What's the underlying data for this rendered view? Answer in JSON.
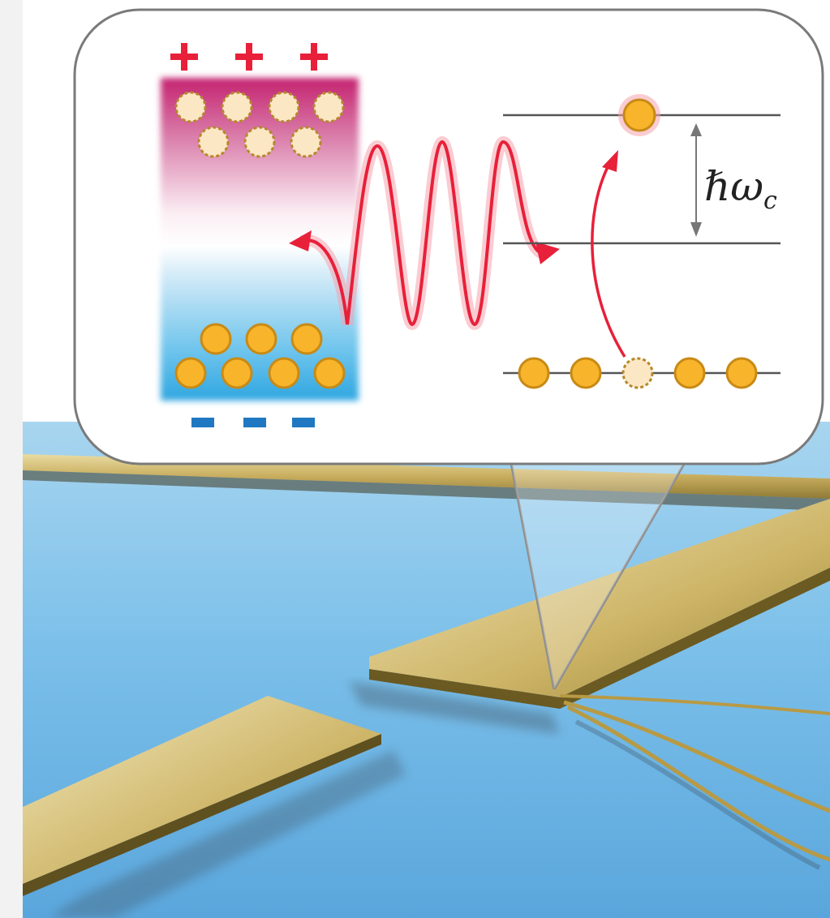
{
  "figure": {
    "energy_label_symbol": "ℏω",
    "energy_label_subscript": "c",
    "charge_top_symbols": [
      "+",
      "+",
      "+"
    ],
    "charge_bottom_symbols": [
      "-",
      "-",
      "-"
    ]
  },
  "colors": {
    "positive_charge": "#e8203a",
    "negative_charge": "#1f78c1",
    "electron_fill": "#f8b42a",
    "electron_stroke": "#c88a16",
    "hole_fill": "#fbe7c4",
    "hole_stroke": "#b5882a",
    "wave": "#e8203a",
    "substrate": "#6db5e3",
    "gold": "#c8ad5e",
    "callout_border": "#7a7a7a"
  },
  "icons": {
    "wave": "electromagnetic-wave-icon",
    "transition_arrow": "excitation-arrow-icon",
    "energy_gap": "double-headed-arrow-icon"
  }
}
